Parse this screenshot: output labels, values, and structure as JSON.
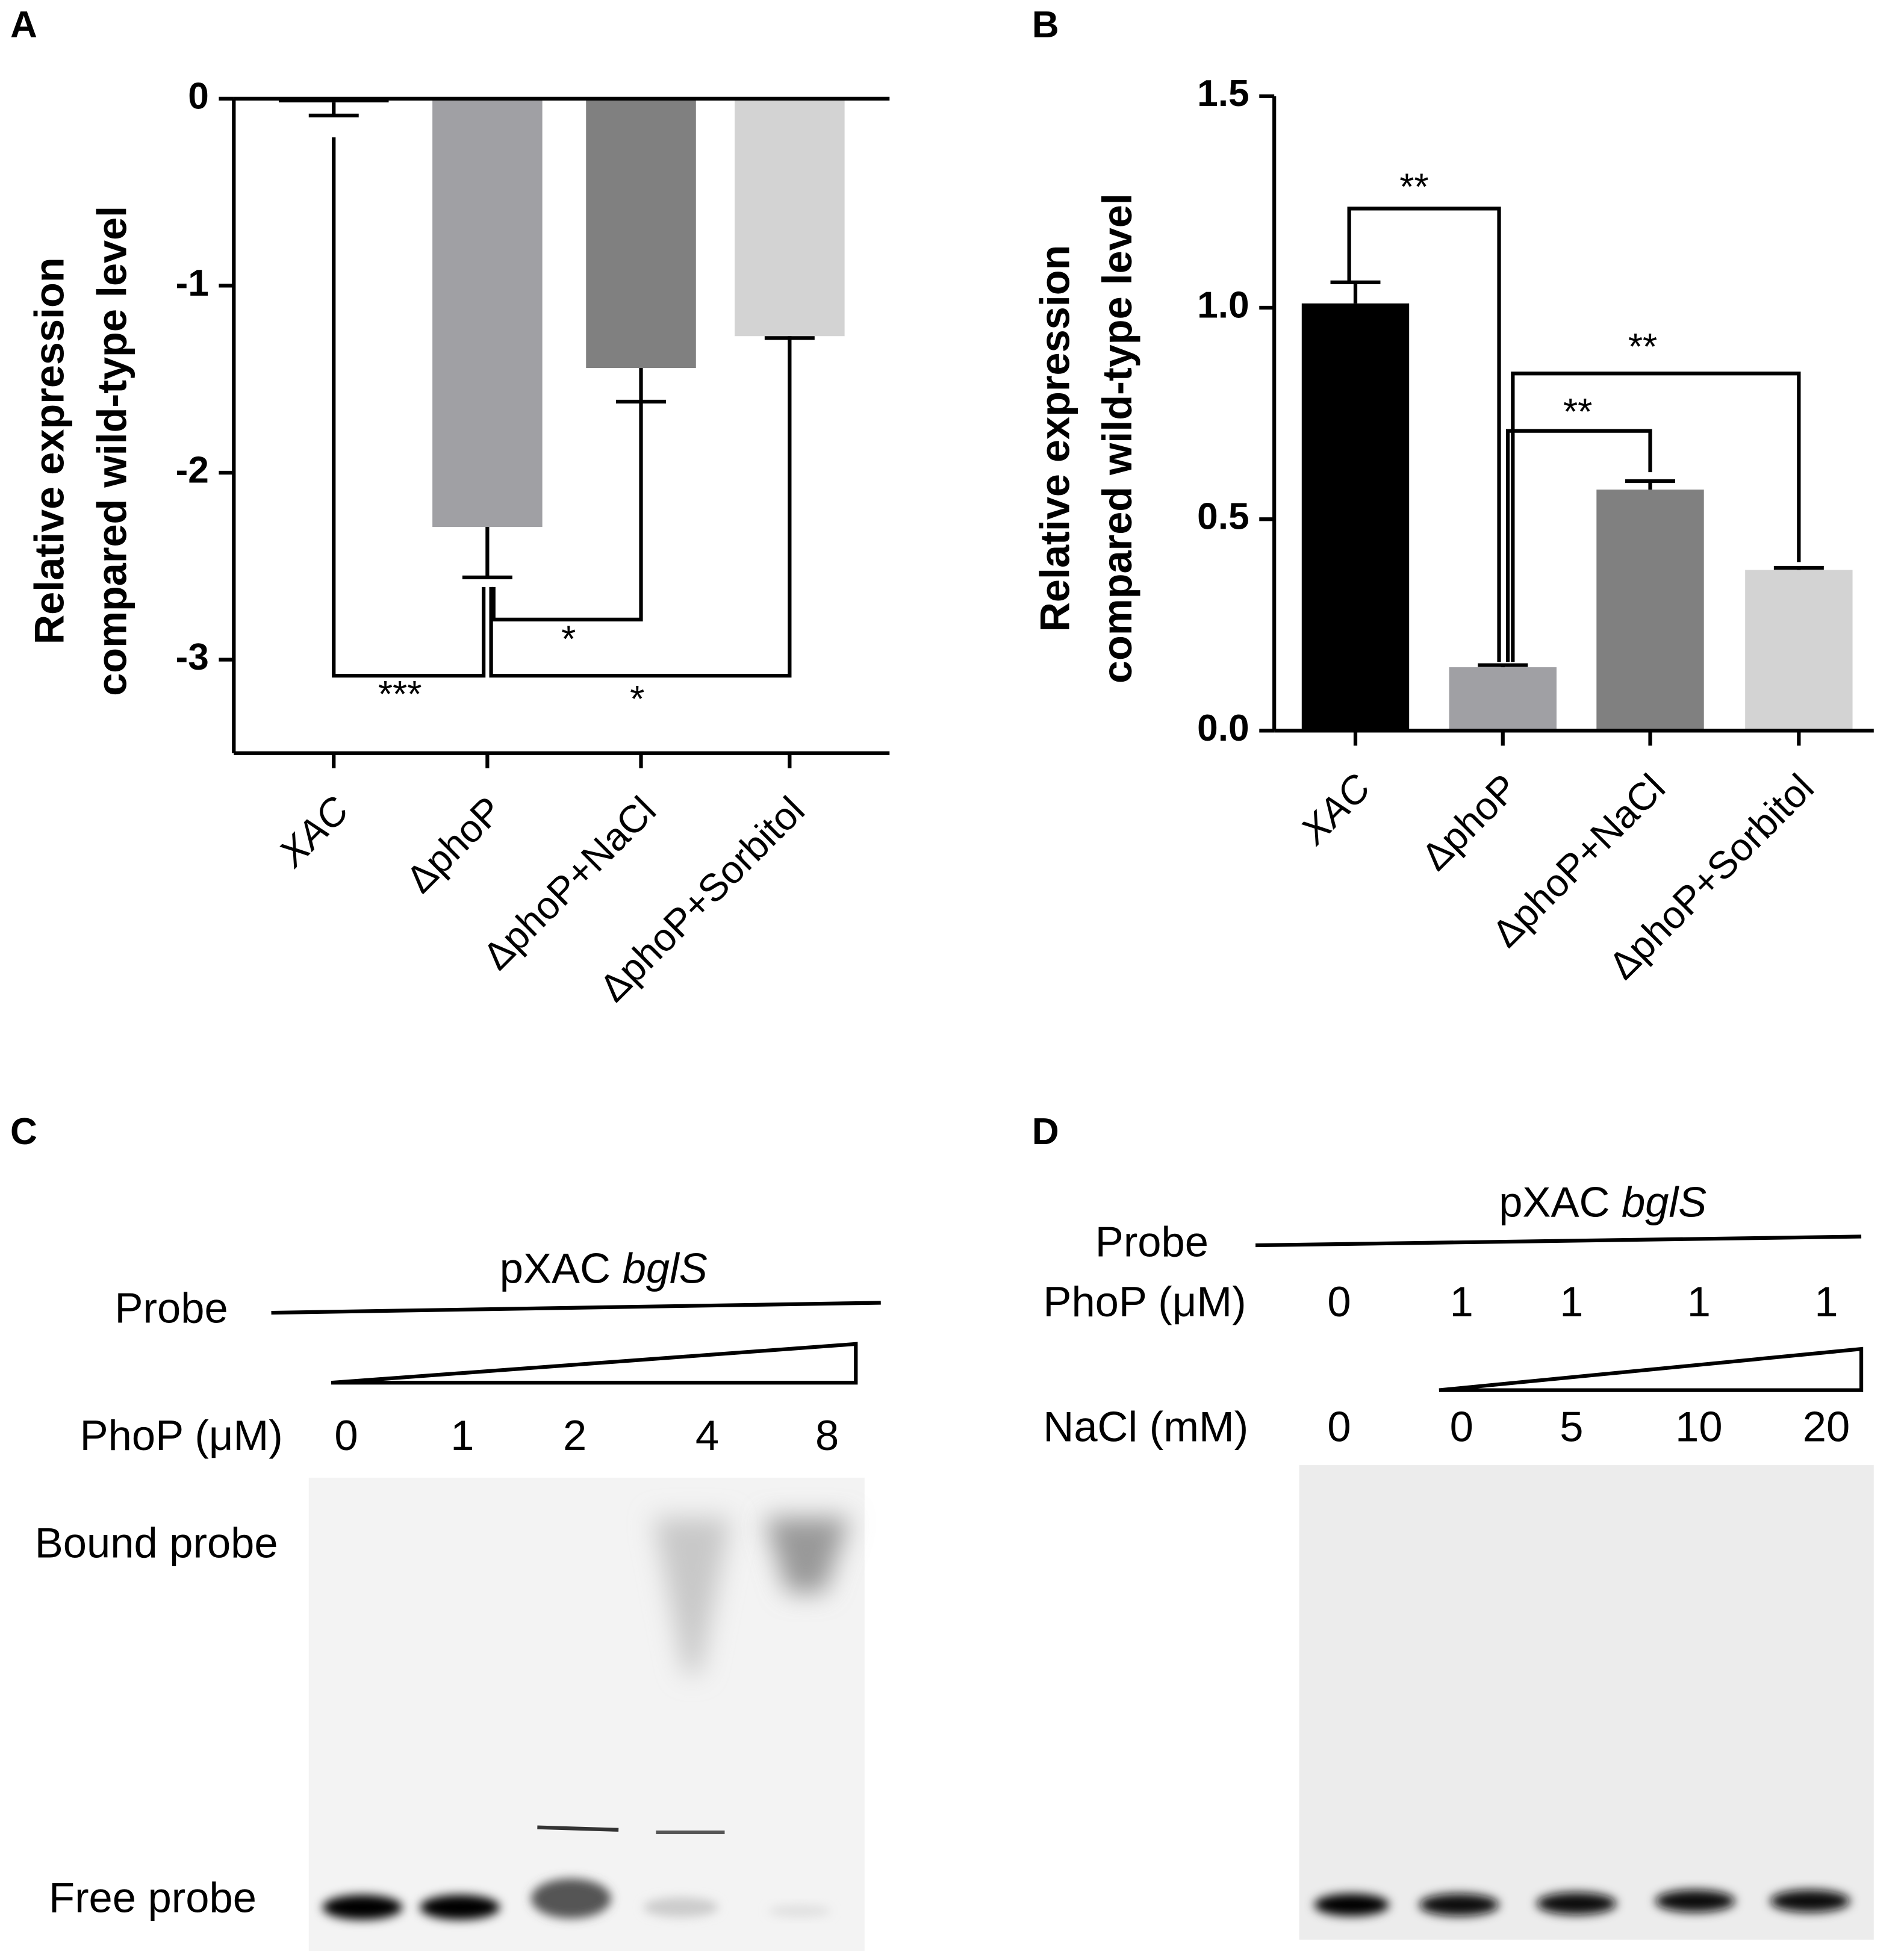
{
  "chart_data": [
    {
      "type": "bar",
      "panel": "A",
      "ylabel": [
        "Relative expression",
        "compared wild-type level"
      ],
      "categories": [
        "XAC",
        "ΔphoP",
        "ΔphoP+NaCl",
        "ΔphoP+Sorbitol"
      ],
      "values": [
        -0.02,
        -2.29,
        -1.44,
        -1.27
      ],
      "errors": [
        0.07,
        0.27,
        0.18,
        0.01
      ],
      "colors": [
        "#000000",
        "#a0a0a4",
        "#808080",
        "#d3d3d3"
      ],
      "ylim": [
        -3.5,
        0
      ],
      "yticks": [
        0,
        -1,
        -2,
        -3
      ],
      "annotations": [
        "***",
        "*",
        "*"
      ]
    },
    {
      "type": "bar",
      "panel": "B",
      "ylabel": [
        "Relative expression",
        "compared wild-type level"
      ],
      "categories": [
        "XAC",
        "ΔphoP",
        "ΔphoP+NaCl",
        "ΔphoP+Sorbitol"
      ],
      "values": [
        1.01,
        0.15,
        0.57,
        0.38
      ],
      "errors": [
        0.05,
        0.005,
        0.02,
        0.005
      ],
      "colors": [
        "#000000",
        "#a0a0a4",
        "#808080",
        "#d3d3d3"
      ],
      "ylim": [
        0,
        1.5
      ],
      "yticks": [
        {
          "value": 0,
          "label": "0.0"
        },
        0.5,
        {
          "value": 1,
          "label": "1.0"
        },
        1.5
      ],
      "annotations": [
        "**",
        "**",
        "**"
      ]
    }
  ],
  "gels": [
    {
      "panel": "C",
      "probe": "Probe",
      "probe_name": "pXAC ",
      "gene": "bglS",
      "rows": [
        {
          "label": "PhoP (μM)",
          "lanes": [
            "0",
            "1",
            "2",
            "4",
            "8"
          ]
        }
      ],
      "bands": [
        "Bound probe",
        "Free probe"
      ]
    },
    {
      "panel": "D",
      "probe": "Probe",
      "probe_name": "pXAC ",
      "gene": "bglS",
      "rows": [
        {
          "label": "PhoP (μM)",
          "lanes": [
            "0",
            "1",
            "1",
            "1",
            "1"
          ]
        },
        {
          "label": "NaCl (mM)",
          "lanes": [
            "0",
            "0",
            "5",
            "10",
            "20"
          ]
        }
      ]
    }
  ]
}
